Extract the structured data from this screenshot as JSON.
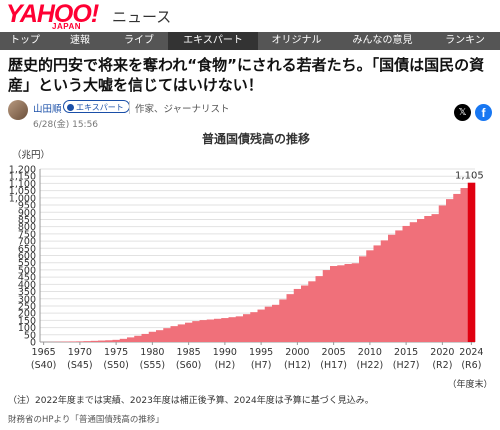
{
  "header": {
    "logo": "YAHOO!",
    "logo_sub": "JAPAN",
    "section_title": "ニュース"
  },
  "nav": {
    "items": [
      {
        "label": "トップ",
        "active": false
      },
      {
        "label": "速報",
        "active": false
      },
      {
        "label": "ライブ",
        "active": false
      },
      {
        "label": "エキスパート",
        "active": true
      },
      {
        "label": "オリジナル",
        "active": false
      },
      {
        "label": "みんなの意見",
        "active": false
      },
      {
        "label": "ランキン",
        "active": false
      }
    ]
  },
  "article": {
    "headline": "歴史的円安で将来を奪われ“食物”にされる若者たち。「国債は国民の資産」という大嘘を信じてはいけない！",
    "author": "山田順",
    "badge": "エキスパート",
    "role": "作家、ジャーナリスト",
    "date": "6/28(金) 15:56",
    "share_x_icon": "x-icon",
    "share_fb_icon": "facebook-icon"
  },
  "chart_data": {
    "type": "bar",
    "title": "普通国債残高の推移",
    "ylabel": "（兆円）",
    "xlabel": "（年度末）",
    "ylim": [
      0,
      1200
    ],
    "yticks": [
      0,
      50,
      100,
      150,
      200,
      250,
      300,
      350,
      400,
      450,
      500,
      550,
      600,
      650,
      700,
      750,
      800,
      850,
      900,
      950,
      1000,
      1050,
      1100,
      1150,
      1200
    ],
    "x_tick_labels": [
      {
        "year": 1965,
        "label": "1965",
        "era": "(S40)"
      },
      {
        "year": 1970,
        "label": "1970",
        "era": "(S45)"
      },
      {
        "year": 1975,
        "label": "1975",
        "era": "(S50)"
      },
      {
        "year": 1980,
        "label": "1980",
        "era": "(S55)"
      },
      {
        "year": 1985,
        "label": "1985",
        "era": "(S60)"
      },
      {
        "year": 1990,
        "label": "1990",
        "era": "(H2)"
      },
      {
        "year": 1995,
        "label": "1995",
        "era": "(H7)"
      },
      {
        "year": 2000,
        "label": "2000",
        "era": "(H12)"
      },
      {
        "year": 2005,
        "label": "2005",
        "era": "(H17)"
      },
      {
        "year": 2010,
        "label": "2010",
        "era": "(H22)"
      },
      {
        "year": 2015,
        "label": "2015",
        "era": "(H27)"
      },
      {
        "year": 2020,
        "label": "2020",
        "era": "(R2)"
      },
      {
        "year": 2024,
        "label": "2024",
        "era": "(R6)"
      }
    ],
    "years": [
      1965,
      1966,
      1967,
      1968,
      1969,
      1970,
      1971,
      1972,
      1973,
      1974,
      1975,
      1976,
      1977,
      1978,
      1979,
      1980,
      1981,
      1982,
      1983,
      1984,
      1985,
      1986,
      1987,
      1988,
      1989,
      1990,
      1991,
      1992,
      1993,
      1994,
      1995,
      1996,
      1997,
      1998,
      1999,
      2000,
      2001,
      2002,
      2003,
      2004,
      2005,
      2006,
      2007,
      2008,
      2009,
      2010,
      2011,
      2012,
      2013,
      2014,
      2015,
      2016,
      2017,
      2018,
      2019,
      2020,
      2021,
      2022,
      2023,
      2024
    ],
    "values": [
      0.2,
      0.9,
      1.9,
      2.9,
      3.8,
      4.5,
      6,
      8,
      10,
      12,
      15,
      22,
      32,
      43,
      56,
      71,
      82,
      96,
      110,
      122,
      134,
      145,
      152,
      156,
      161,
      166,
      172,
      178,
      193,
      207,
      225,
      245,
      258,
      295,
      332,
      368,
      392,
      421,
      457,
      499,
      527,
      532,
      541,
      546,
      594,
      636,
      670,
      705,
      744,
      774,
      805,
      831,
      853,
      874,
      887,
      947,
      991,
      1027,
      1068,
      1105
    ],
    "highlight_index": 59,
    "highlight_label": "1,105",
    "colors": {
      "bar": "#f0707a",
      "highlight": "#e00010"
    },
    "note": "（注）2022年度までは実績、2023年度は補正後予算、2024年度は予算に基づく見込み。"
  },
  "caption": "財務省のHPより「普通国債残高の推移」"
}
